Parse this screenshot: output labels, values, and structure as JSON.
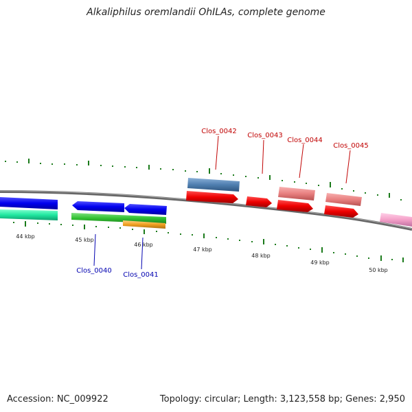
{
  "title": "Alkaliphilus oremlandii OhILAs, complete genome",
  "footer": {
    "accession": "Accession: NC_009922",
    "summary": "Topology: circular; Length: 3,123,558 bp; Genes: 2,950"
  },
  "scale_labels": [
    "44 kbp",
    "45 kbp",
    "46 kbp",
    "47 kbp",
    "48 kbp",
    "49 kbp",
    "50 kbp"
  ],
  "gene_labels": [
    {
      "name": "Clos_0040",
      "color": "#0000b0"
    },
    {
      "name": "Clos_0041",
      "color": "#0000b0"
    },
    {
      "name": "Clos_0042",
      "color": "#c00000"
    },
    {
      "name": "Clos_0043",
      "color": "#c00000"
    },
    {
      "name": "Clos_0044",
      "color": "#c00000"
    },
    {
      "name": "Clos_0045",
      "color": "#c00000"
    }
  ],
  "colors": {
    "backbone": "#777777",
    "ticks": "#1a7a1a",
    "cds_forward": "#ee0000",
    "cds_reverse": "#0000ee",
    "steelblue_feature": "#4f7fb0",
    "salmon_feature": "#e88080",
    "aqua_feature": "#20e8a0",
    "green_feature": "#30c030",
    "orange_feature": "#f0a020",
    "pink_feature": "#f4a0c8"
  }
}
